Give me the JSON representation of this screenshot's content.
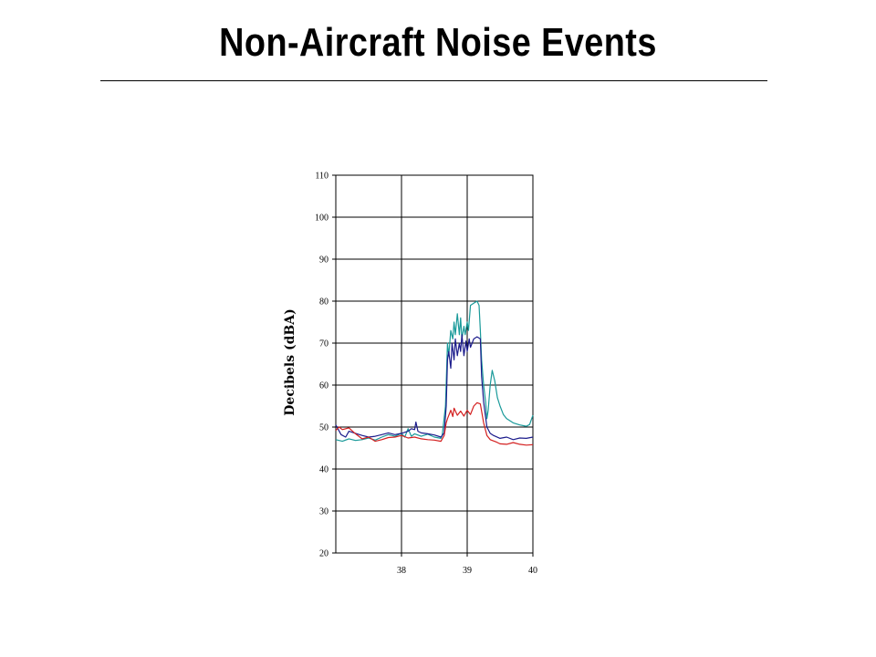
{
  "slide": {
    "title": "Non-Aircraft Noise Events"
  },
  "chart_data": {
    "type": "line",
    "title": "",
    "xlabel": "",
    "ylabel": "Decibels (dBA)",
    "xlim": [
      37,
      40
    ],
    "ylim": [
      20,
      110
    ],
    "x_ticks": [
      38,
      39,
      40
    ],
    "y_ticks": [
      20,
      30,
      40,
      50,
      60,
      70,
      80,
      90,
      100,
      110
    ],
    "grid": true,
    "colors": {
      "teal": "#1a9a9a",
      "navy": "#1c1c8c",
      "red": "#d42020"
    },
    "series": [
      {
        "color": "#1a9a9a",
        "points": [
          [
            37.0,
            47
          ],
          [
            37.1,
            46.6
          ],
          [
            37.2,
            47.2
          ],
          [
            37.3,
            46.8
          ],
          [
            37.4,
            47
          ],
          [
            37.5,
            47.4
          ],
          [
            37.6,
            46.9
          ],
          [
            37.7,
            47.6
          ],
          [
            37.8,
            48.2
          ],
          [
            37.9,
            47.8
          ],
          [
            38.0,
            48.5
          ],
          [
            38.05,
            47.6
          ],
          [
            38.1,
            49.6
          ],
          [
            38.15,
            47.8
          ],
          [
            38.2,
            48.4
          ],
          [
            38.3,
            47.8
          ],
          [
            38.4,
            48.3
          ],
          [
            38.5,
            47.6
          ],
          [
            38.6,
            47.3
          ],
          [
            38.62,
            48
          ],
          [
            38.67,
            55
          ],
          [
            38.7,
            70
          ],
          [
            38.72,
            67
          ],
          [
            38.75,
            73
          ],
          [
            38.78,
            71
          ],
          [
            38.8,
            75
          ],
          [
            38.82,
            72
          ],
          [
            38.85,
            77
          ],
          [
            38.88,
            72
          ],
          [
            38.9,
            76
          ],
          [
            38.92,
            71
          ],
          [
            38.95,
            74
          ],
          [
            38.97,
            72
          ],
          [
            39.0,
            75
          ],
          [
            39.02,
            73
          ],
          [
            39.05,
            79
          ],
          [
            39.1,
            79.5
          ],
          [
            39.15,
            80
          ],
          [
            39.18,
            79
          ],
          [
            39.2,
            73
          ],
          [
            39.22,
            66
          ],
          [
            39.25,
            60
          ],
          [
            39.28,
            56
          ],
          [
            39.3,
            52
          ],
          [
            39.32,
            54
          ],
          [
            39.35,
            60
          ],
          [
            39.38,
            63.5
          ],
          [
            39.42,
            61
          ],
          [
            39.46,
            57
          ],
          [
            39.5,
            55
          ],
          [
            39.55,
            53
          ],
          [
            39.6,
            52
          ],
          [
            39.7,
            51
          ],
          [
            39.8,
            50.5
          ],
          [
            39.9,
            50.2
          ],
          [
            39.95,
            50.6
          ],
          [
            40.0,
            52.8
          ]
        ]
      },
      {
        "color": "#1c1c8c",
        "points": [
          [
            37.0,
            50.5
          ],
          [
            37.08,
            48.2
          ],
          [
            37.15,
            47.6
          ],
          [
            37.2,
            49
          ],
          [
            37.3,
            48.5
          ],
          [
            37.4,
            48
          ],
          [
            37.5,
            47.6
          ],
          [
            37.6,
            47.8
          ],
          [
            37.7,
            48.2
          ],
          [
            37.8,
            48.6
          ],
          [
            37.9,
            48.2
          ],
          [
            38.0,
            48.5
          ],
          [
            38.1,
            49
          ],
          [
            38.15,
            49.6
          ],
          [
            38.2,
            49.4
          ],
          [
            38.22,
            51.2
          ],
          [
            38.25,
            49
          ],
          [
            38.3,
            48.6
          ],
          [
            38.4,
            48.4
          ],
          [
            38.5,
            48.1
          ],
          [
            38.6,
            47.6
          ],
          [
            38.65,
            48.6
          ],
          [
            38.68,
            55
          ],
          [
            38.7,
            66
          ],
          [
            38.72,
            68
          ],
          [
            38.75,
            64
          ],
          [
            38.77,
            70
          ],
          [
            38.8,
            66
          ],
          [
            38.82,
            71
          ],
          [
            38.85,
            67
          ],
          [
            38.88,
            70
          ],
          [
            38.9,
            68
          ],
          [
            38.92,
            72
          ],
          [
            38.95,
            67
          ],
          [
            38.98,
            70.5
          ],
          [
            39.0,
            68
          ],
          [
            39.03,
            71
          ],
          [
            39.05,
            69
          ],
          [
            39.1,
            71
          ],
          [
            39.15,
            71.5
          ],
          [
            39.2,
            71
          ],
          [
            39.22,
            62
          ],
          [
            39.25,
            56
          ],
          [
            39.3,
            50
          ],
          [
            39.35,
            48.5
          ],
          [
            39.4,
            48
          ],
          [
            39.5,
            47.3
          ],
          [
            39.6,
            47.6
          ],
          [
            39.7,
            47
          ],
          [
            39.8,
            47.4
          ],
          [
            39.9,
            47.3
          ],
          [
            40.0,
            47.6
          ]
        ]
      },
      {
        "color": "#d42020",
        "points": [
          [
            37.0,
            49.2
          ],
          [
            37.05,
            50
          ],
          [
            37.1,
            49.4
          ],
          [
            37.2,
            49.8
          ],
          [
            37.3,
            48.4
          ],
          [
            37.4,
            47.2
          ],
          [
            37.5,
            47.6
          ],
          [
            37.6,
            46.6
          ],
          [
            37.7,
            47
          ],
          [
            37.8,
            47.5
          ],
          [
            37.9,
            47.6
          ],
          [
            38.0,
            48
          ],
          [
            38.1,
            47.4
          ],
          [
            38.2,
            47.6
          ],
          [
            38.3,
            47.2
          ],
          [
            38.4,
            47
          ],
          [
            38.5,
            46.9
          ],
          [
            38.6,
            46.6
          ],
          [
            38.65,
            48
          ],
          [
            38.68,
            51
          ],
          [
            38.7,
            52
          ],
          [
            38.75,
            54
          ],
          [
            38.78,
            52.5
          ],
          [
            38.8,
            54.5
          ],
          [
            38.85,
            52.8
          ],
          [
            38.9,
            53.8
          ],
          [
            38.95,
            52.6
          ],
          [
            39.0,
            54
          ],
          [
            39.05,
            53
          ],
          [
            39.1,
            55
          ],
          [
            39.15,
            55.8
          ],
          [
            39.2,
            55.5
          ],
          [
            39.25,
            51
          ],
          [
            39.3,
            48
          ],
          [
            39.35,
            47
          ],
          [
            39.45,
            46.4
          ],
          [
            39.5,
            46
          ],
          [
            39.6,
            45.9
          ],
          [
            39.7,
            46.3
          ],
          [
            39.8,
            45.9
          ],
          [
            39.9,
            45.7
          ],
          [
            40.0,
            45.8
          ]
        ]
      }
    ]
  }
}
